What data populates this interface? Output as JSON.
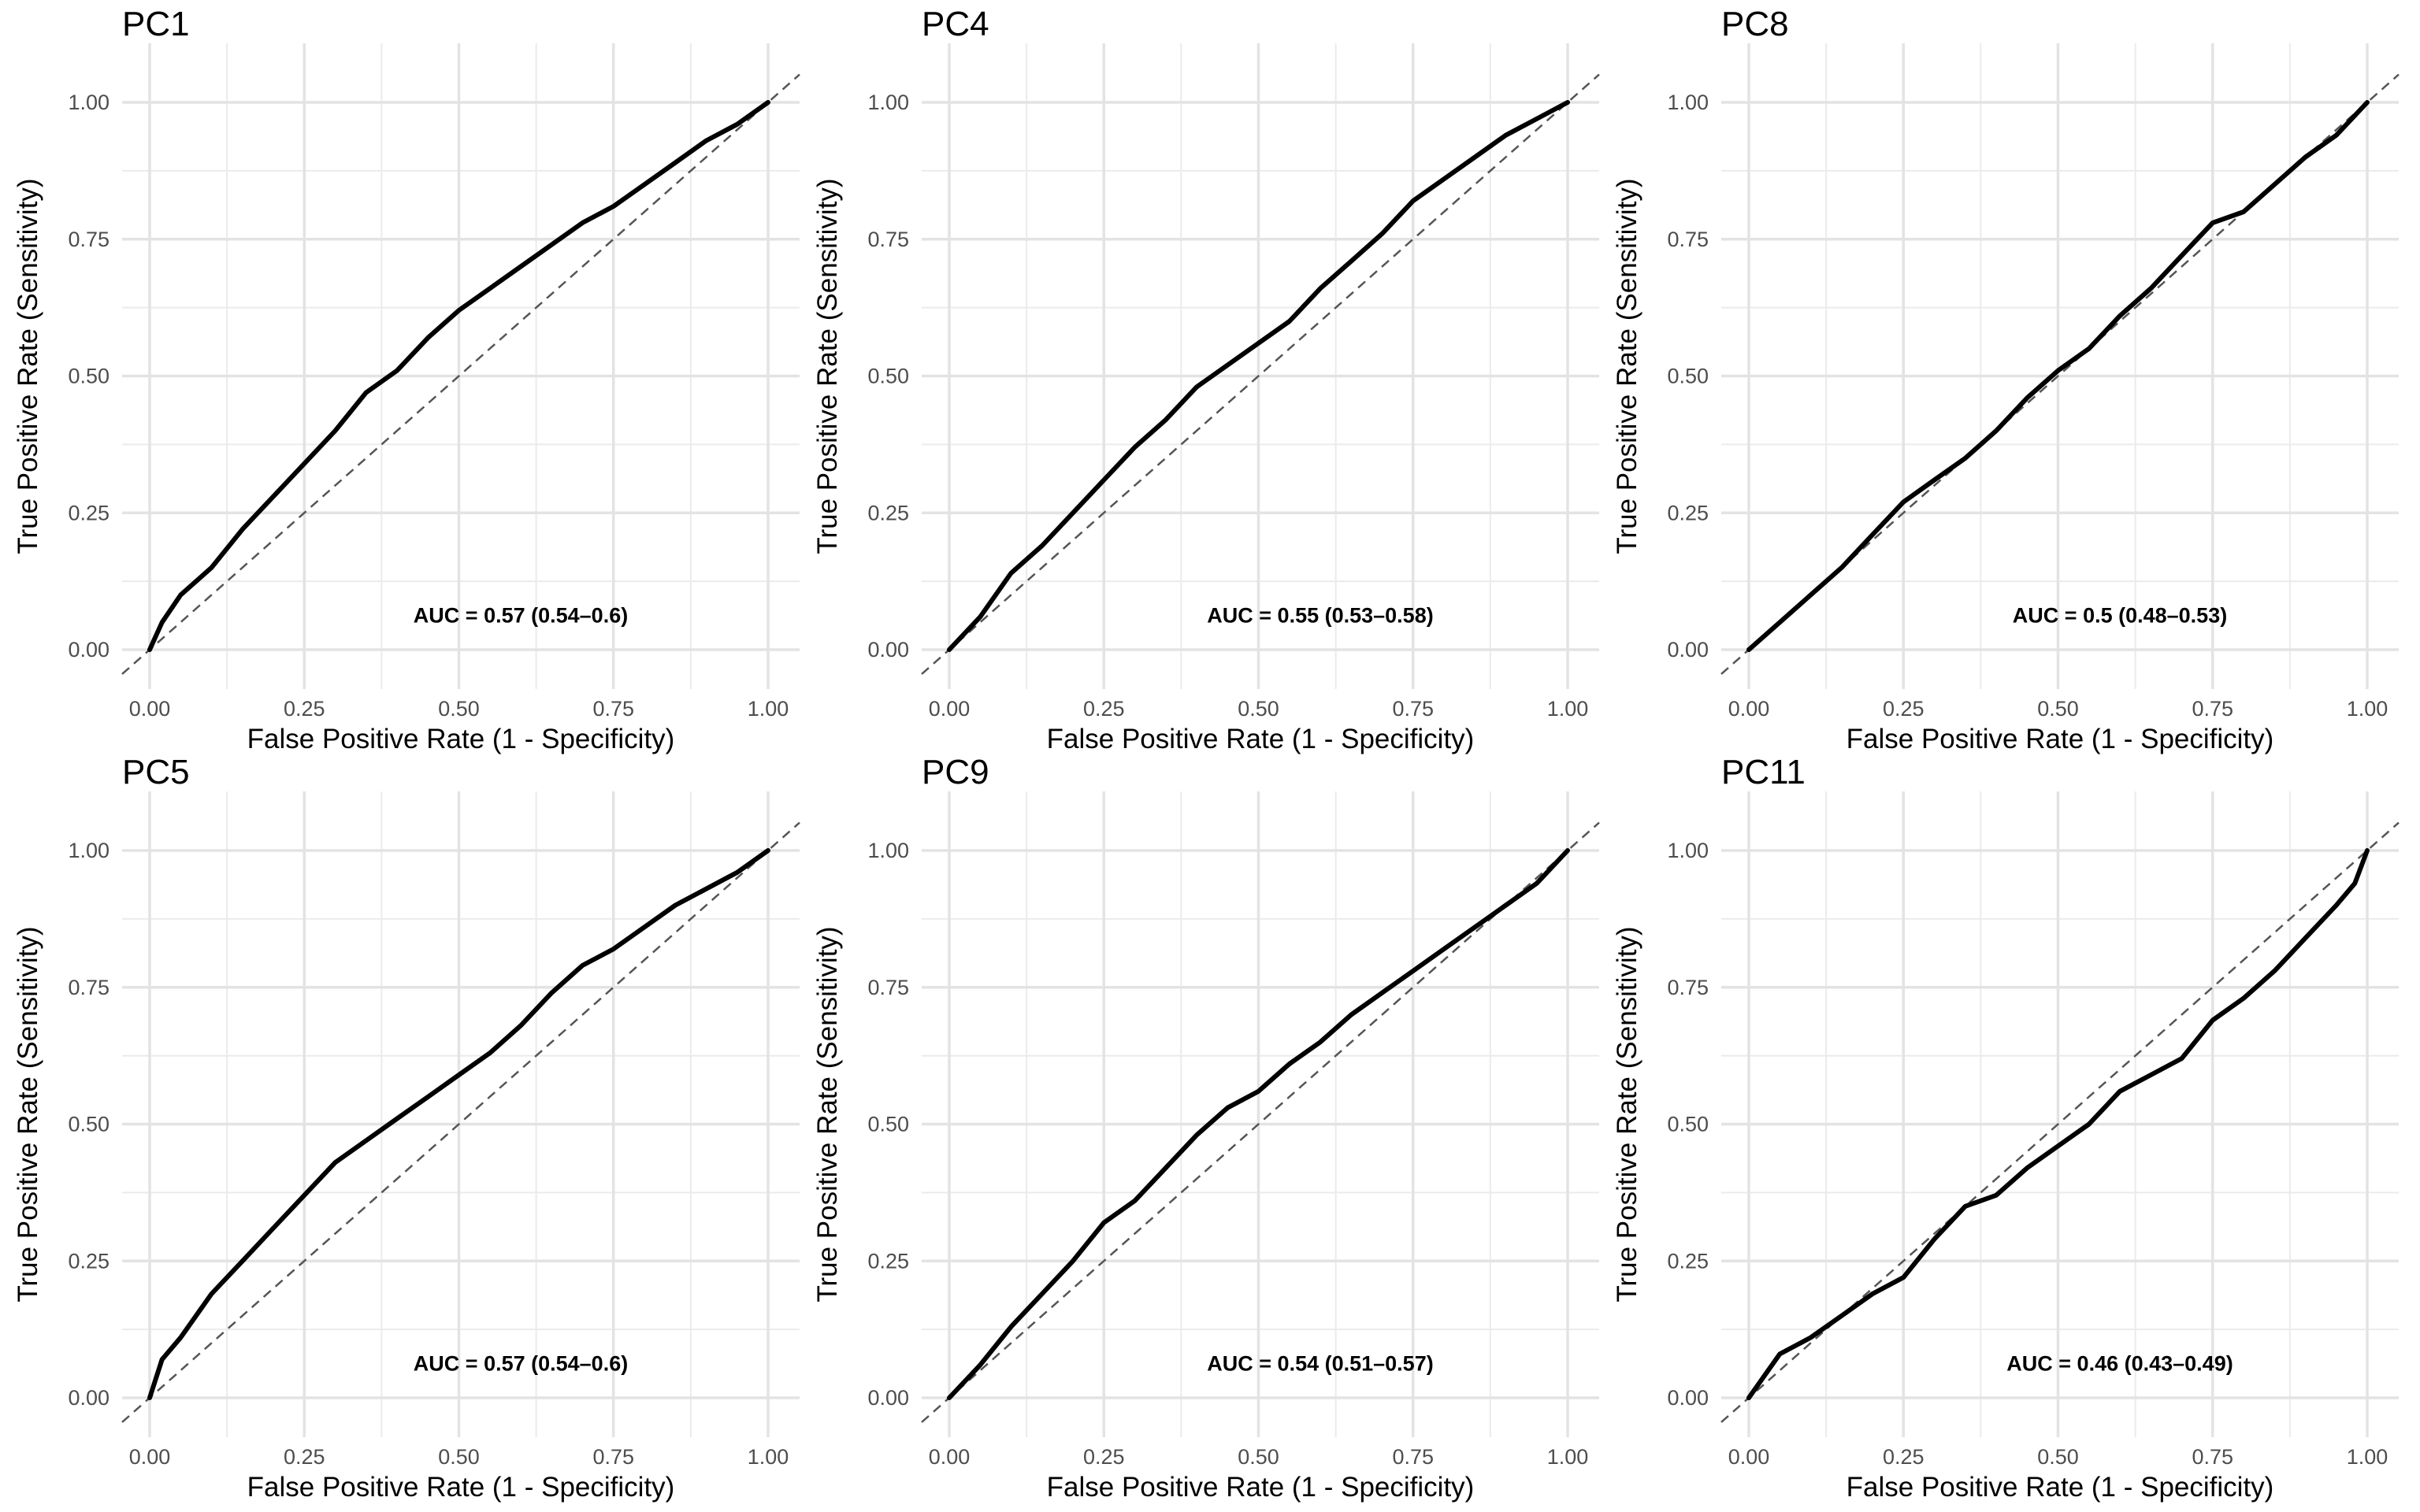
{
  "chart_data": [
    {
      "type": "line",
      "title": "PC1",
      "xlabel": "False Positive Rate (1 - Specificity)",
      "ylabel": "True Positive Rate (Sensitivity)",
      "xlim": [
        0,
        1
      ],
      "ylim": [
        0,
        1
      ],
      "xticks": [
        "0.00",
        "0.25",
        "0.50",
        "0.75",
        "1.00"
      ],
      "yticks": [
        "0.00",
        "0.25",
        "0.50",
        "0.75",
        "1.00"
      ],
      "grid": true,
      "reference_line": "diagonal y = x (dashed)",
      "annotation": "AUC = 0.57 (0.54–0.6)",
      "x": [
        0,
        0.02,
        0.05,
        0.1,
        0.15,
        0.2,
        0.25,
        0.3,
        0.35,
        0.4,
        0.45,
        0.5,
        0.55,
        0.6,
        0.65,
        0.7,
        0.75,
        0.8,
        0.85,
        0.9,
        0.95,
        1
      ],
      "y": [
        0,
        0.05,
        0.1,
        0.15,
        0.22,
        0.28,
        0.34,
        0.4,
        0.47,
        0.51,
        0.57,
        0.62,
        0.66,
        0.7,
        0.74,
        0.78,
        0.81,
        0.85,
        0.89,
        0.93,
        0.96,
        1
      ]
    },
    {
      "type": "line",
      "title": "PC4",
      "xlabel": "False Positive Rate (1 - Specificity)",
      "ylabel": "True Positive Rate (Sensitivity)",
      "xlim": [
        0,
        1
      ],
      "ylim": [
        0,
        1
      ],
      "xticks": [
        "0.00",
        "0.25",
        "0.50",
        "0.75",
        "1.00"
      ],
      "yticks": [
        "0.00",
        "0.25",
        "0.50",
        "0.75",
        "1.00"
      ],
      "grid": true,
      "reference_line": "diagonal y = x (dashed)",
      "annotation": "AUC = 0.55 (0.53–0.58)",
      "x": [
        0,
        0.05,
        0.1,
        0.15,
        0.2,
        0.25,
        0.3,
        0.35,
        0.4,
        0.45,
        0.5,
        0.55,
        0.6,
        0.65,
        0.7,
        0.75,
        0.8,
        0.85,
        0.9,
        0.95,
        1
      ],
      "y": [
        0,
        0.06,
        0.14,
        0.19,
        0.25,
        0.31,
        0.37,
        0.42,
        0.48,
        0.52,
        0.56,
        0.6,
        0.66,
        0.71,
        0.76,
        0.82,
        0.86,
        0.9,
        0.94,
        0.97,
        1
      ]
    },
    {
      "type": "line",
      "title": "PC8",
      "xlabel": "False Positive Rate (1 - Specificity)",
      "ylabel": "True Positive Rate (Sensitivity)",
      "xlim": [
        0,
        1
      ],
      "ylim": [
        0,
        1
      ],
      "xticks": [
        "0.00",
        "0.25",
        "0.50",
        "0.75",
        "1.00"
      ],
      "yticks": [
        "0.00",
        "0.25",
        "0.50",
        "0.75",
        "1.00"
      ],
      "grid": true,
      "reference_line": "diagonal y = x (dashed)",
      "annotation": "AUC = 0.5 (0.48–0.53)",
      "x": [
        0,
        0.05,
        0.1,
        0.15,
        0.2,
        0.25,
        0.3,
        0.35,
        0.4,
        0.45,
        0.5,
        0.55,
        0.6,
        0.65,
        0.7,
        0.75,
        0.8,
        0.85,
        0.9,
        0.95,
        1
      ],
      "y": [
        0,
        0.05,
        0.1,
        0.15,
        0.21,
        0.27,
        0.31,
        0.35,
        0.4,
        0.46,
        0.51,
        0.55,
        0.61,
        0.66,
        0.72,
        0.78,
        0.8,
        0.85,
        0.9,
        0.94,
        1
      ]
    },
    {
      "type": "line",
      "title": "PC5",
      "xlabel": "False Positive Rate (1 - Specificity)",
      "ylabel": "True Positive Rate (Sensitivity)",
      "xlim": [
        0,
        1
      ],
      "ylim": [
        0,
        1
      ],
      "xticks": [
        "0.00",
        "0.25",
        "0.50",
        "0.75",
        "1.00"
      ],
      "yticks": [
        "0.00",
        "0.25",
        "0.50",
        "0.75",
        "1.00"
      ],
      "grid": true,
      "reference_line": "diagonal y = x (dashed)",
      "annotation": "AUC = 0.57 (0.54–0.6)",
      "x": [
        0,
        0.02,
        0.05,
        0.1,
        0.15,
        0.2,
        0.25,
        0.3,
        0.35,
        0.4,
        0.45,
        0.5,
        0.55,
        0.6,
        0.65,
        0.7,
        0.75,
        0.8,
        0.85,
        0.9,
        0.95,
        1
      ],
      "y": [
        0,
        0.07,
        0.11,
        0.19,
        0.25,
        0.31,
        0.37,
        0.43,
        0.47,
        0.51,
        0.55,
        0.59,
        0.63,
        0.68,
        0.74,
        0.79,
        0.82,
        0.86,
        0.9,
        0.93,
        0.96,
        1
      ]
    },
    {
      "type": "line",
      "title": "PC9",
      "xlabel": "False Positive Rate (1 - Specificity)",
      "ylabel": "True Positive Rate (Sensitivity)",
      "xlim": [
        0,
        1
      ],
      "ylim": [
        0,
        1
      ],
      "xticks": [
        "0.00",
        "0.25",
        "0.50",
        "0.75",
        "1.00"
      ],
      "yticks": [
        "0.00",
        "0.25",
        "0.50",
        "0.75",
        "1.00"
      ],
      "grid": true,
      "reference_line": "diagonal y = x (dashed)",
      "annotation": "AUC = 0.54 (0.51–0.57)",
      "x": [
        0,
        0.05,
        0.1,
        0.15,
        0.2,
        0.25,
        0.3,
        0.35,
        0.4,
        0.45,
        0.5,
        0.55,
        0.6,
        0.65,
        0.7,
        0.75,
        0.8,
        0.85,
        0.9,
        0.95,
        1
      ],
      "y": [
        0,
        0.06,
        0.13,
        0.19,
        0.25,
        0.32,
        0.36,
        0.42,
        0.48,
        0.53,
        0.56,
        0.61,
        0.65,
        0.7,
        0.74,
        0.78,
        0.82,
        0.86,
        0.9,
        0.94,
        1
      ]
    },
    {
      "type": "line",
      "title": "PC11",
      "xlabel": "False Positive Rate (1 - Specificity)",
      "ylabel": "True Positive Rate (Sensitivity)",
      "xlim": [
        0,
        1
      ],
      "ylim": [
        0,
        1
      ],
      "xticks": [
        "0.00",
        "0.25",
        "0.50",
        "0.75",
        "1.00"
      ],
      "yticks": [
        "0.00",
        "0.25",
        "0.50",
        "0.75",
        "1.00"
      ],
      "grid": true,
      "reference_line": "diagonal y = x (dashed)",
      "annotation": "AUC = 0.46 (0.43–0.49)",
      "x": [
        0,
        0.05,
        0.1,
        0.15,
        0.2,
        0.25,
        0.3,
        0.35,
        0.4,
        0.45,
        0.5,
        0.55,
        0.6,
        0.65,
        0.7,
        0.75,
        0.8,
        0.85,
        0.9,
        0.95,
        0.98,
        1
      ],
      "y": [
        0,
        0.08,
        0.11,
        0.15,
        0.19,
        0.22,
        0.29,
        0.35,
        0.37,
        0.42,
        0.46,
        0.5,
        0.56,
        0.59,
        0.62,
        0.69,
        0.73,
        0.78,
        0.84,
        0.9,
        0.94,
        1
      ]
    }
  ]
}
